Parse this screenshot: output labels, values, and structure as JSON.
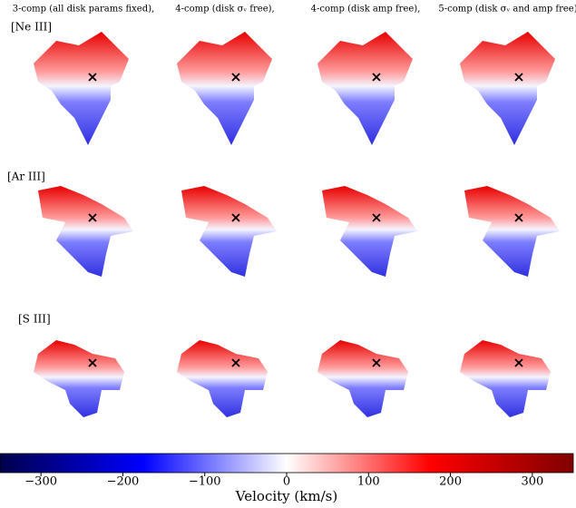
{
  "panels": {
    "columns": [
      "3-comp (all disk params fixed),",
      "4-comp (disk σᵥ free),",
      "4-comp (disk amp free),",
      "5-comp (disk σᵥ and amp free)"
    ],
    "rows": [
      "[Ne III]",
      "[Ar III]",
      "[S III]"
    ]
  },
  "chart_data": {
    "type": "colorbar",
    "label": "Velocity (km/s)",
    "xlim": [
      -350,
      350
    ],
    "xticks": [
      {
        "value": -300,
        "label": "−300"
      },
      {
        "value": -200,
        "label": "−200"
      },
      {
        "value": -100,
        "label": "−100"
      },
      0,
      100,
      200,
      300
    ],
    "colors": [
      "#00004c",
      "#0000ff",
      "#ffffff",
      "#ff0000",
      "#800000"
    ]
  }
}
